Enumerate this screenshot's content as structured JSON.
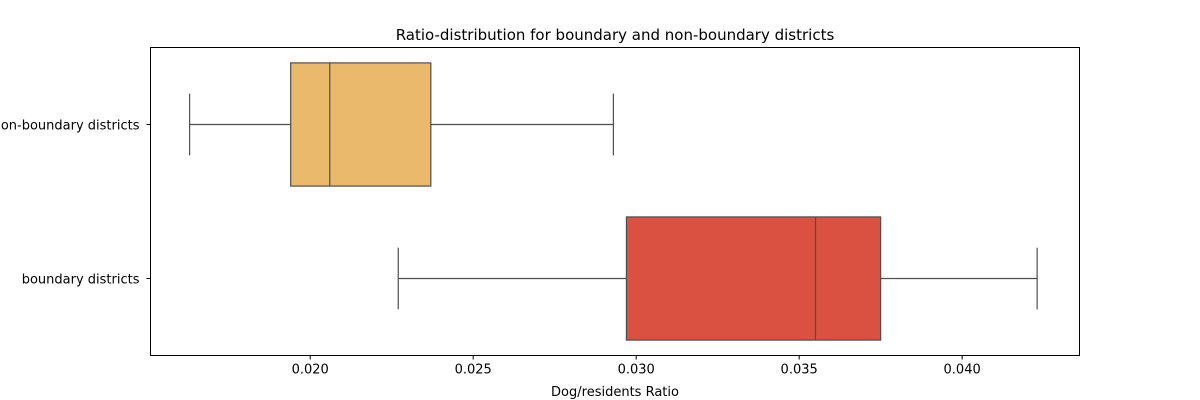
{
  "chart_data": {
    "type": "boxplot",
    "orientation": "horizontal",
    "title": "Ratio-distribution for boundary and non-boundary districts",
    "xlabel": "Dog/residents Ratio",
    "ylabel": "",
    "xlim": [
      0.0151,
      0.0436
    ],
    "xticks": [
      0.02,
      0.025,
      0.03,
      0.035,
      0.04
    ],
    "xtick_labels": [
      "0.020",
      "0.025",
      "0.030",
      "0.035",
      "0.040"
    ],
    "categories": [
      "non-boundary districts",
      "boundary districts"
    ],
    "boxes": [
      {
        "category": "non-boundary districts",
        "color": "#EBB96B",
        "whisker_low": 0.0163,
        "q1": 0.0194,
        "median": 0.0206,
        "q3": 0.0237,
        "whisker_high": 0.0293
      },
      {
        "category": "boundary districts",
        "color": "#DA5141",
        "whisker_low": 0.0227,
        "q1": 0.0297,
        "median": 0.0355,
        "q3": 0.0375,
        "whisker_high": 0.0423
      }
    ],
    "line_color": "#4f4f4f",
    "grid": false,
    "legend": "none"
  }
}
